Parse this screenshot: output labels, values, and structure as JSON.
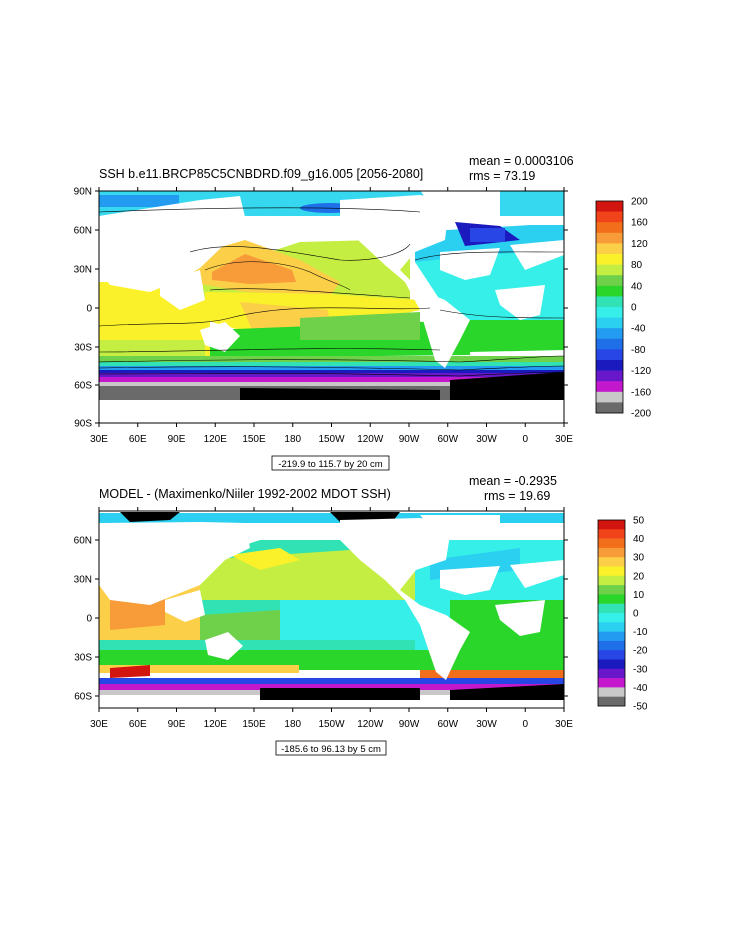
{
  "panels": [
    {
      "id": "top",
      "title": "SSH b.e11.BRCP85C5CNBDRD.f09_g16.005 [2056-2080]",
      "mean": "mean = 0.0003106",
      "rms": "rms = 73.19",
      "info": "-219.9 to 115.7 by 20 cm",
      "lat_labels": [
        "90N",
        "60N",
        "30N",
        "0",
        "30S",
        "60S",
        "90S"
      ],
      "lon_labels": [
        "30E",
        "60E",
        "90E",
        "120E",
        "150E",
        "180",
        "150W",
        "120W",
        "90W",
        "60W",
        "30W",
        "0",
        "30E"
      ],
      "colorbar_labels": [
        "200",
        "160",
        "120",
        "80",
        "40",
        "0",
        "-40",
        "-80",
        "-120",
        "-160",
        "-200"
      ],
      "colorbar_colors": [
        "#d2150f",
        "#f0431a",
        "#f26e1b",
        "#f89c3a",
        "#fbcf48",
        "#fbf12a",
        "#c5ee42",
        "#6fd14a",
        "#2bd62b",
        "#31e3b4",
        "#35efe8",
        "#2bcff0",
        "#239bf0",
        "#1e6fe8",
        "#2846e6",
        "#1a1abe",
        "#6818ca",
        "#c418cc",
        "#c8c8c8",
        "#6a6a6a"
      ]
    },
    {
      "id": "bottom",
      "title": "MODEL - (Maximenko/Niiler 1992-2002 MDOT SSH)",
      "mean": "mean = -0.2935",
      "rms": "rms = 19.69",
      "info": "-185.6 to 96.13 by 5 cm",
      "lat_labels": [
        "60N",
        "30N",
        "0",
        "30S",
        "60S"
      ],
      "lon_labels": [
        "30E",
        "60E",
        "90E",
        "120E",
        "150E",
        "180",
        "150W",
        "120W",
        "90W",
        "60W",
        "30W",
        "0",
        "30E"
      ],
      "colorbar_labels": [
        "50",
        "40",
        "30",
        "20",
        "10",
        "0",
        "-10",
        "-20",
        "-30",
        "-40",
        "-50"
      ],
      "colorbar_colors": [
        "#d2150f",
        "#f0431a",
        "#f26e1b",
        "#f89c3a",
        "#fbcf48",
        "#fbf12a",
        "#c5ee42",
        "#6fd14a",
        "#2bd62b",
        "#31e3b4",
        "#35efe8",
        "#2bcff0",
        "#239bf0",
        "#1e6fe8",
        "#2846e6",
        "#1a1abe",
        "#6818ca",
        "#c418cc",
        "#c8c8c8",
        "#6a6a6a"
      ]
    }
  ]
}
